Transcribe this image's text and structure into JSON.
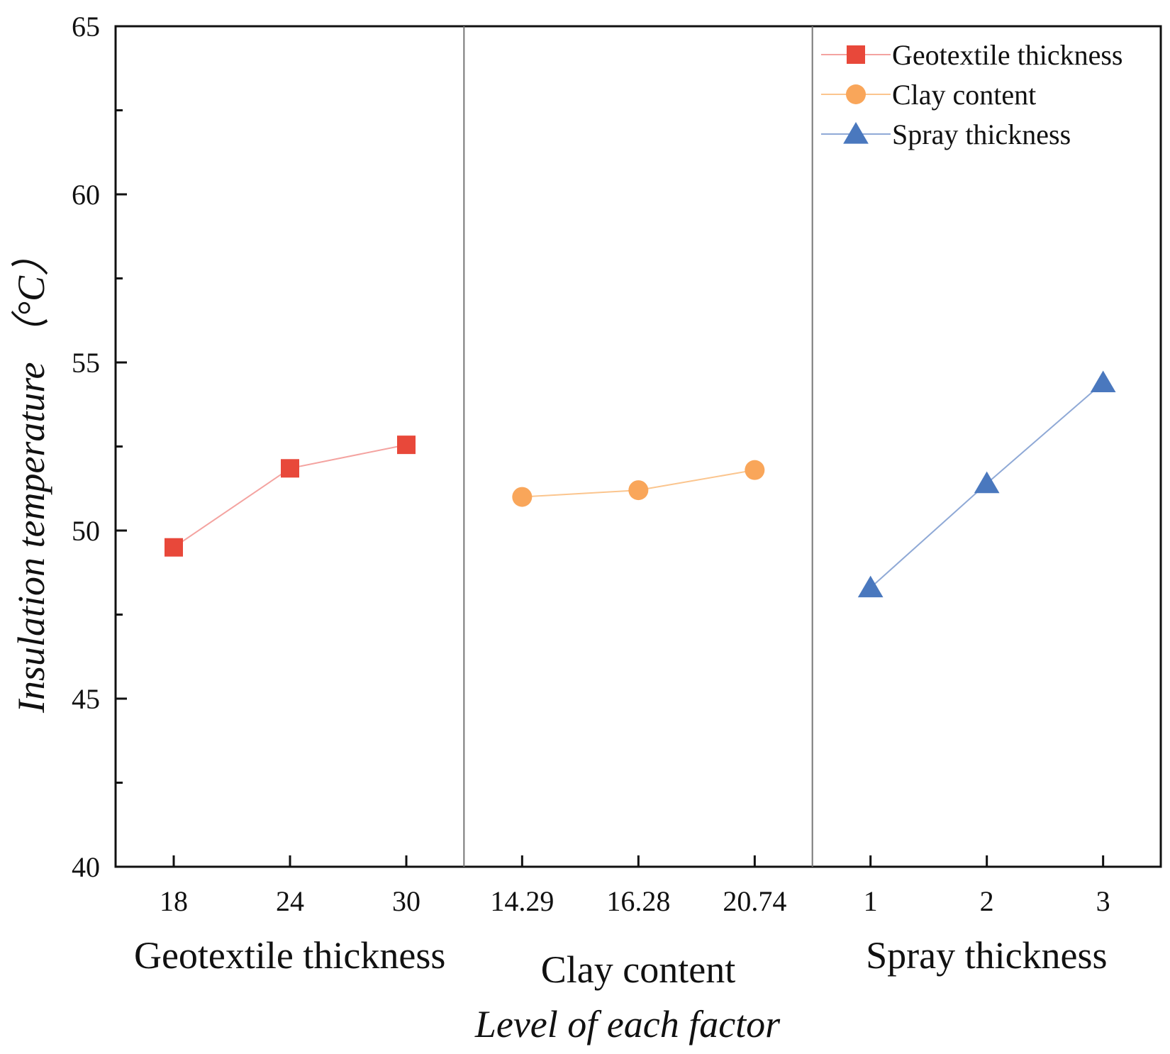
{
  "chart_data": {
    "type": "line",
    "title": "",
    "xlabel": "Level of each factor",
    "ylabel": "Insulation temperature",
    "ylabel_unit": "（°C）",
    "ylim": [
      40,
      65
    ],
    "yticks": [
      40,
      45,
      50,
      55,
      60,
      65
    ],
    "y_minor_step": 2.5,
    "legend_position": "top-right",
    "grid": false,
    "series": [
      {
        "name": "Geotextile thickness",
        "group_label": "Geotextile thickness",
        "categories": [
          "18",
          "24",
          "30"
        ],
        "values": [
          49.5,
          51.85,
          52.55
        ],
        "marker": "square",
        "color": "#E8483A",
        "line_color": "#F4A3A0"
      },
      {
        "name": "Clay content",
        "group_label": "Clay content",
        "categories": [
          "14.29",
          "16.28",
          "20.74"
        ],
        "values": [
          51.0,
          51.2,
          51.8
        ],
        "marker": "circle",
        "color": "#F9A65A",
        "line_color": "#FBC58E"
      },
      {
        "name": "Spray thickness",
        "group_label": "Spray thickness",
        "categories": [
          "1",
          "2",
          "3"
        ],
        "values": [
          48.3,
          51.4,
          54.4
        ],
        "marker": "triangle",
        "color": "#4A78BE",
        "line_color": "#8FA9D6"
      }
    ]
  }
}
